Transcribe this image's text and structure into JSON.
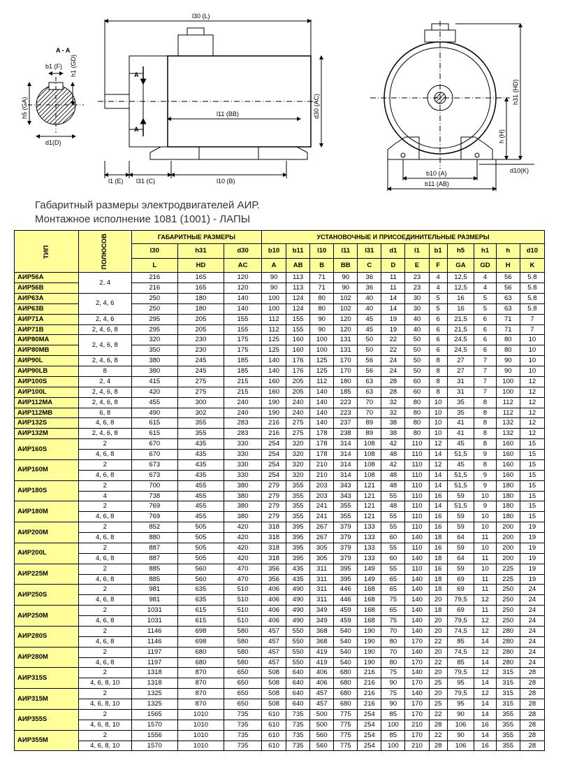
{
  "caption_line1": "Габаритный размеры электродвигателей АИР.",
  "caption_line2": "Монтажное исполнение 1081 (1001) - ЛАПЫ",
  "diagram": {
    "section_label": "A - A",
    "dim_labels": {
      "b1": "b1 (F)",
      "h1": "h1 (GD)",
      "h5": "h5 (GA)",
      "d1": "d1(D)",
      "l30": "l30 (L)",
      "l11": "l11 (BB)",
      "d30": "d30 (AC)",
      "l1": "l1 (E)",
      "l31": "l31 (C)",
      "l10": "l10 (B)",
      "h31": "h31 (HD)",
      "h": "h (H)",
      "d10": "d10(K)",
      "b10": "b10 (A)",
      "b11": "b11 (AB)",
      "A": "A"
    },
    "colors": {
      "stroke": "#000000",
      "hatch": "#000000",
      "bg": "#ffffff"
    }
  },
  "headers": {
    "type": "ТИП",
    "poles": "ПОЛЮСОВ",
    "overall": "ГАБАРИТНЫЕ РАЗМЕРЫ",
    "mount": "УСТАНОВОЧНЫЕ И ПРИСОЕДИНИТЕЛЬНЫЕ РАЗМЕРЫ",
    "cols_top": [
      "l30",
      "h31",
      "d30",
      "b10",
      "b11",
      "l10",
      "l11",
      "l31",
      "d1",
      "l1",
      "b1",
      "h5",
      "h1",
      "h",
      "d10"
    ],
    "cols_bot": [
      "L",
      "HD",
      "AC",
      "A",
      "AB",
      "B",
      "BB",
      "C",
      "D",
      "E",
      "F",
      "GA",
      "GD",
      "H",
      "K"
    ]
  },
  "rows": [
    {
      "t": "АИР56A",
      "p": null,
      "d": [
        "216",
        "165",
        "120",
        "90",
        "113",
        "71",
        "90",
        "36",
        "11",
        "23",
        "4",
        "12,5",
        "4",
        "56",
        "5.8"
      ]
    },
    {
      "t": "АИР56B",
      "p": "2, 4",
      "d": [
        "216",
        "165",
        "120",
        "90",
        "113",
        "71",
        "90",
        "36",
        "11",
        "23",
        "4",
        "12,5",
        "4",
        "56",
        "5.8"
      ],
      "span": 2,
      "anchor": true
    },
    {
      "t": "АИР63A",
      "p": null,
      "d": [
        "250",
        "180",
        "140",
        "100",
        "124",
        "80",
        "102",
        "40",
        "14",
        "30",
        "5",
        "16",
        "5",
        "63",
        "5.8"
      ]
    },
    {
      "t": "АИР63B",
      "p": "2, 4, 6",
      "d": [
        "250",
        "180",
        "140",
        "100",
        "124",
        "80",
        "102",
        "40",
        "14",
        "30",
        "5",
        "16",
        "5",
        "63",
        "5.8"
      ],
      "span": 2,
      "anchor": true
    },
    {
      "t": "АИР71A",
      "p": "2, 4, 6",
      "d": [
        "295",
        "205",
        "155",
        "112",
        "155",
        "90",
        "120",
        "45",
        "19",
        "40",
        "6",
        "21,5",
        "6",
        "71",
        "7"
      ]
    },
    {
      "t": "АИР71B",
      "p": "2, 4, 6, 8",
      "d": [
        "295",
        "205",
        "155",
        "112",
        "155",
        "90",
        "120",
        "45",
        "19",
        "40",
        "6",
        "21,5",
        "6",
        "71",
        "7"
      ]
    },
    {
      "t": "АИР80MA",
      "p": null,
      "d": [
        "320",
        "230",
        "175",
        "125",
        "160",
        "100",
        "131",
        "50",
        "22",
        "50",
        "6",
        "24,5",
        "6",
        "80",
        "10"
      ]
    },
    {
      "t": "АИР80MB",
      "p": "2, 4, 6, 8",
      "d": [
        "350",
        "230",
        "175",
        "125",
        "160",
        "100",
        "131",
        "50",
        "22",
        "50",
        "6",
        "24,5",
        "6",
        "80",
        "10"
      ],
      "span": 2,
      "anchor": true
    },
    {
      "t": "АИР90L",
      "p": "2, 4, 6, 8",
      "d": [
        "380",
        "245",
        "185",
        "140",
        "176",
        "125",
        "170",
        "56",
        "24",
        "50",
        "8",
        "27",
        "7",
        "90",
        "10"
      ]
    },
    {
      "t": "АИР90LB",
      "p": "8",
      "d": [
        "380",
        "245",
        "185",
        "140",
        "176",
        "125",
        "170",
        "56",
        "24",
        "50",
        "8",
        "27",
        "7",
        "90",
        "10"
      ]
    },
    {
      "t": "АИР100S",
      "p": "2, 4",
      "d": [
        "415",
        "275",
        "215",
        "160",
        "205",
        "112",
        "180",
        "63",
        "28",
        "60",
        "8",
        "31",
        "7",
        "100",
        "12"
      ]
    },
    {
      "t": "АИР100L",
      "p": "2, 4, 6, 8",
      "d": [
        "420",
        "275",
        "215",
        "160",
        "205",
        "140",
        "185",
        "63",
        "28",
        "60",
        "8",
        "31",
        "7",
        "100",
        "12"
      ]
    },
    {
      "t": "АИР112MA",
      "p": "2, 4, 6, 8",
      "d": [
        "455",
        "300",
        "240",
        "190",
        "240",
        "140",
        "223",
        "70",
        "32",
        "80",
        "10",
        "35",
        "8",
        "112",
        "12"
      ]
    },
    {
      "t": "АИР112MB",
      "p": "6, 8",
      "d": [
        "490",
        "302",
        "240",
        "190",
        "240",
        "140",
        "223",
        "70",
        "32",
        "80",
        "10",
        "35",
        "8",
        "112",
        "12"
      ]
    },
    {
      "t": "АИР132S",
      "p": "4, 6, 8",
      "d": [
        "615",
        "355",
        "283",
        "216",
        "275",
        "140",
        "237",
        "89",
        "38",
        "80",
        "10",
        "41",
        "8",
        "132",
        "12"
      ]
    },
    {
      "t": "АИР132M",
      "p": "2, 4, 6, 8",
      "d": [
        "615",
        "355",
        "283",
        "216",
        "275",
        "178",
        "238",
        "89",
        "38",
        "80",
        "10",
        "41",
        "8",
        "132",
        "12"
      ]
    },
    {
      "t": "АИР160S",
      "pspan": 2,
      "psub": [
        "2",
        "4, 6, 8"
      ],
      "d": [
        [
          "670",
          "435",
          "330",
          "254",
          "320",
          "178",
          "314",
          "108",
          "42",
          "110",
          "12",
          "45",
          "8",
          "160",
          "15"
        ],
        [
          "670",
          "435",
          "330",
          "254",
          "320",
          "178",
          "314",
          "108",
          "48",
          "110",
          "14",
          "51,5",
          "9",
          "160",
          "15"
        ]
      ]
    },
    {
      "t": "АИР160M",
      "pspan": 2,
      "psub": [
        "2",
        "4, 6, 8"
      ],
      "d": [
        [
          "673",
          "435",
          "330",
          "254",
          "320",
          "210",
          "314",
          "108",
          "42",
          "110",
          "12",
          "45",
          "8",
          "160",
          "15"
        ],
        [
          "673",
          "435",
          "330",
          "254",
          "320",
          "210",
          "314",
          "108",
          "48",
          "110",
          "14",
          "51,5",
          "9",
          "160",
          "15"
        ]
      ]
    },
    {
      "t": "АИР180S",
      "pspan": 2,
      "psub": [
        "2",
        "4"
      ],
      "d": [
        [
          "700",
          "455",
          "380",
          "279",
          "355",
          "203",
          "343",
          "121",
          "48",
          "110",
          "14",
          "51,5",
          "9",
          "180",
          "15"
        ],
        [
          "738",
          "455",
          "380",
          "279",
          "355",
          "203",
          "343",
          "121",
          "55",
          "110",
          "16",
          "59",
          "10",
          "180",
          "15"
        ]
      ]
    },
    {
      "t": "АИР180M",
      "pspan": 2,
      "psub": [
        "2",
        "4, 6, 8"
      ],
      "d": [
        [
          "769",
          "455",
          "380",
          "279",
          "355",
          "241",
          "355",
          "121",
          "48",
          "110",
          "14",
          "51,5",
          "9",
          "180",
          "15"
        ],
        [
          "769",
          "455",
          "380",
          "279",
          "355",
          "241",
          "355",
          "121",
          "55",
          "110",
          "16",
          "59",
          "10",
          "180",
          "15"
        ]
      ]
    },
    {
      "t": "АИР200M",
      "pspan": 2,
      "psub": [
        "2",
        "4, 6, 8"
      ],
      "d": [
        [
          "852",
          "505",
          "420",
          "318",
          "395",
          "267",
          "379",
          "133",
          "55",
          "110",
          "16",
          "59",
          "10",
          "200",
          "19"
        ],
        [
          "880",
          "505",
          "420",
          "318",
          "395",
          "267",
          "379",
          "133",
          "60",
          "140",
          "18",
          "64",
          "11",
          "200",
          "19"
        ]
      ]
    },
    {
      "t": "АИР200L",
      "pspan": 2,
      "psub": [
        "2",
        "4, 6, 8"
      ],
      "d": [
        [
          "887",
          "505",
          "420",
          "318",
          "395",
          "305",
          "379",
          "133",
          "55",
          "110",
          "16",
          "59",
          "10",
          "200",
          "19"
        ],
        [
          "887",
          "505",
          "420",
          "318",
          "395",
          "305",
          "379",
          "133",
          "60",
          "140",
          "18",
          "64",
          "11",
          "200",
          "19"
        ]
      ]
    },
    {
      "t": "АИР225M",
      "pspan": 2,
      "psub": [
        "2",
        "4, 6, 8"
      ],
      "d": [
        [
          "885",
          "560",
          "470",
          "356",
          "435",
          "311",
          "395",
          "149",
          "55",
          "110",
          "16",
          "59",
          "10",
          "225",
          "19"
        ],
        [
          "885",
          "560",
          "470",
          "356",
          "435",
          "311",
          "395",
          "149",
          "65",
          "140",
          "18",
          "69",
          "11",
          "225",
          "19"
        ]
      ]
    },
    {
      "t": "АИР250S",
      "pspan": 2,
      "psub": [
        "2",
        "4, 6, 8"
      ],
      "d": [
        [
          "981",
          "635",
          "510",
          "406",
          "490",
          "311",
          "446",
          "168",
          "65",
          "140",
          "18",
          "69",
          "11",
          "250",
          "24"
        ],
        [
          "981",
          "635",
          "510",
          "406",
          "490",
          "311",
          "446",
          "168",
          "75",
          "140",
          "20",
          "79,5",
          "12",
          "250",
          "24"
        ]
      ]
    },
    {
      "t": "АИР250M",
      "pspan": 2,
      "psub": [
        "2",
        "4, 6, 8"
      ],
      "d": [
        [
          "1031",
          "615",
          "510",
          "406",
          "490",
          "349",
          "459",
          "168",
          "65",
          "140",
          "18",
          "69",
          "11",
          "250",
          "24"
        ],
        [
          "1031",
          "615",
          "510",
          "406",
          "490",
          "349",
          "459",
          "168",
          "75",
          "140",
          "20",
          "79,5",
          "12",
          "250",
          "24"
        ]
      ]
    },
    {
      "t": "АИР280S",
      "pspan": 2,
      "psub": [
        "2",
        "4, 6, 8"
      ],
      "d": [
        [
          "1146",
          "698",
          "580",
          "457",
          "550",
          "368",
          "540",
          "190",
          "70",
          "140",
          "20",
          "74,5",
          "12",
          "280",
          "24"
        ],
        [
          "1146",
          "698",
          "580",
          "457",
          "550",
          "368",
          "540",
          "190",
          "80",
          "170",
          "22",
          "85",
          "14",
          "280",
          "24"
        ]
      ]
    },
    {
      "t": "АИР280M",
      "pspan": 2,
      "psub": [
        "2",
        "4, 6, 8"
      ],
      "d": [
        [
          "1197",
          "680",
          "580",
          "457",
          "550",
          "419",
          "540",
          "190",
          "70",
          "140",
          "20",
          "74,5",
          "12",
          "280",
          "24"
        ],
        [
          "1197",
          "680",
          "580",
          "457",
          "550",
          "419",
          "540",
          "190",
          "80",
          "170",
          "22",
          "85",
          "14",
          "280",
          "24"
        ]
      ]
    },
    {
      "t": "АИР315S",
      "pspan": 2,
      "psub": [
        "2",
        "4, 6, 8, 10"
      ],
      "d": [
        [
          "1318",
          "870",
          "650",
          "508",
          "640",
          "406",
          "680",
          "216",
          "75",
          "140",
          "20",
          "79,5",
          "12",
          "315",
          "28"
        ],
        [
          "1318",
          "870",
          "650",
          "508",
          "640",
          "406",
          "680",
          "216",
          "90",
          "170",
          "25",
          "95",
          "14",
          "315",
          "28"
        ]
      ]
    },
    {
      "t": "АИР315M",
      "pspan": 2,
      "psub": [
        "2",
        "4, 6, 8, 10"
      ],
      "d": [
        [
          "1325",
          "870",
          "650",
          "508",
          "640",
          "457",
          "680",
          "216",
          "75",
          "140",
          "20",
          "79,5",
          "12",
          "315",
          "28"
        ],
        [
          "1325",
          "870",
          "650",
          "508",
          "640",
          "457",
          "680",
          "216",
          "90",
          "170",
          "25",
          "95",
          "14",
          "315",
          "28"
        ]
      ]
    },
    {
      "t": "АИР355S",
      "pspan": 2,
      "psub": [
        "2",
        "4, 6, 8, 10"
      ],
      "d": [
        [
          "1565",
          "1010",
          "735",
          "610",
          "735",
          "500",
          "775",
          "254",
          "85",
          "170",
          "22",
          "90",
          "14",
          "355",
          "28"
        ],
        [
          "1570",
          "1010",
          "735",
          "610",
          "735",
          "500",
          "775",
          "254",
          "100",
          "210",
          "28",
          "106",
          "16",
          "355",
          "28"
        ]
      ]
    },
    {
      "t": "АИР355M",
      "pspan": 2,
      "psub": [
        "2",
        "4, 6, 8, 10"
      ],
      "d": [
        [
          "1556",
          "1010",
          "735",
          "610",
          "735",
          "560",
          "775",
          "254",
          "85",
          "170",
          "22",
          "90",
          "14",
          "355",
          "28"
        ],
        [
          "1570",
          "1010",
          "735",
          "610",
          "735",
          "560",
          "775",
          "254",
          "100",
          "210",
          "28",
          "106",
          "16",
          "355",
          "28"
        ]
      ]
    }
  ]
}
